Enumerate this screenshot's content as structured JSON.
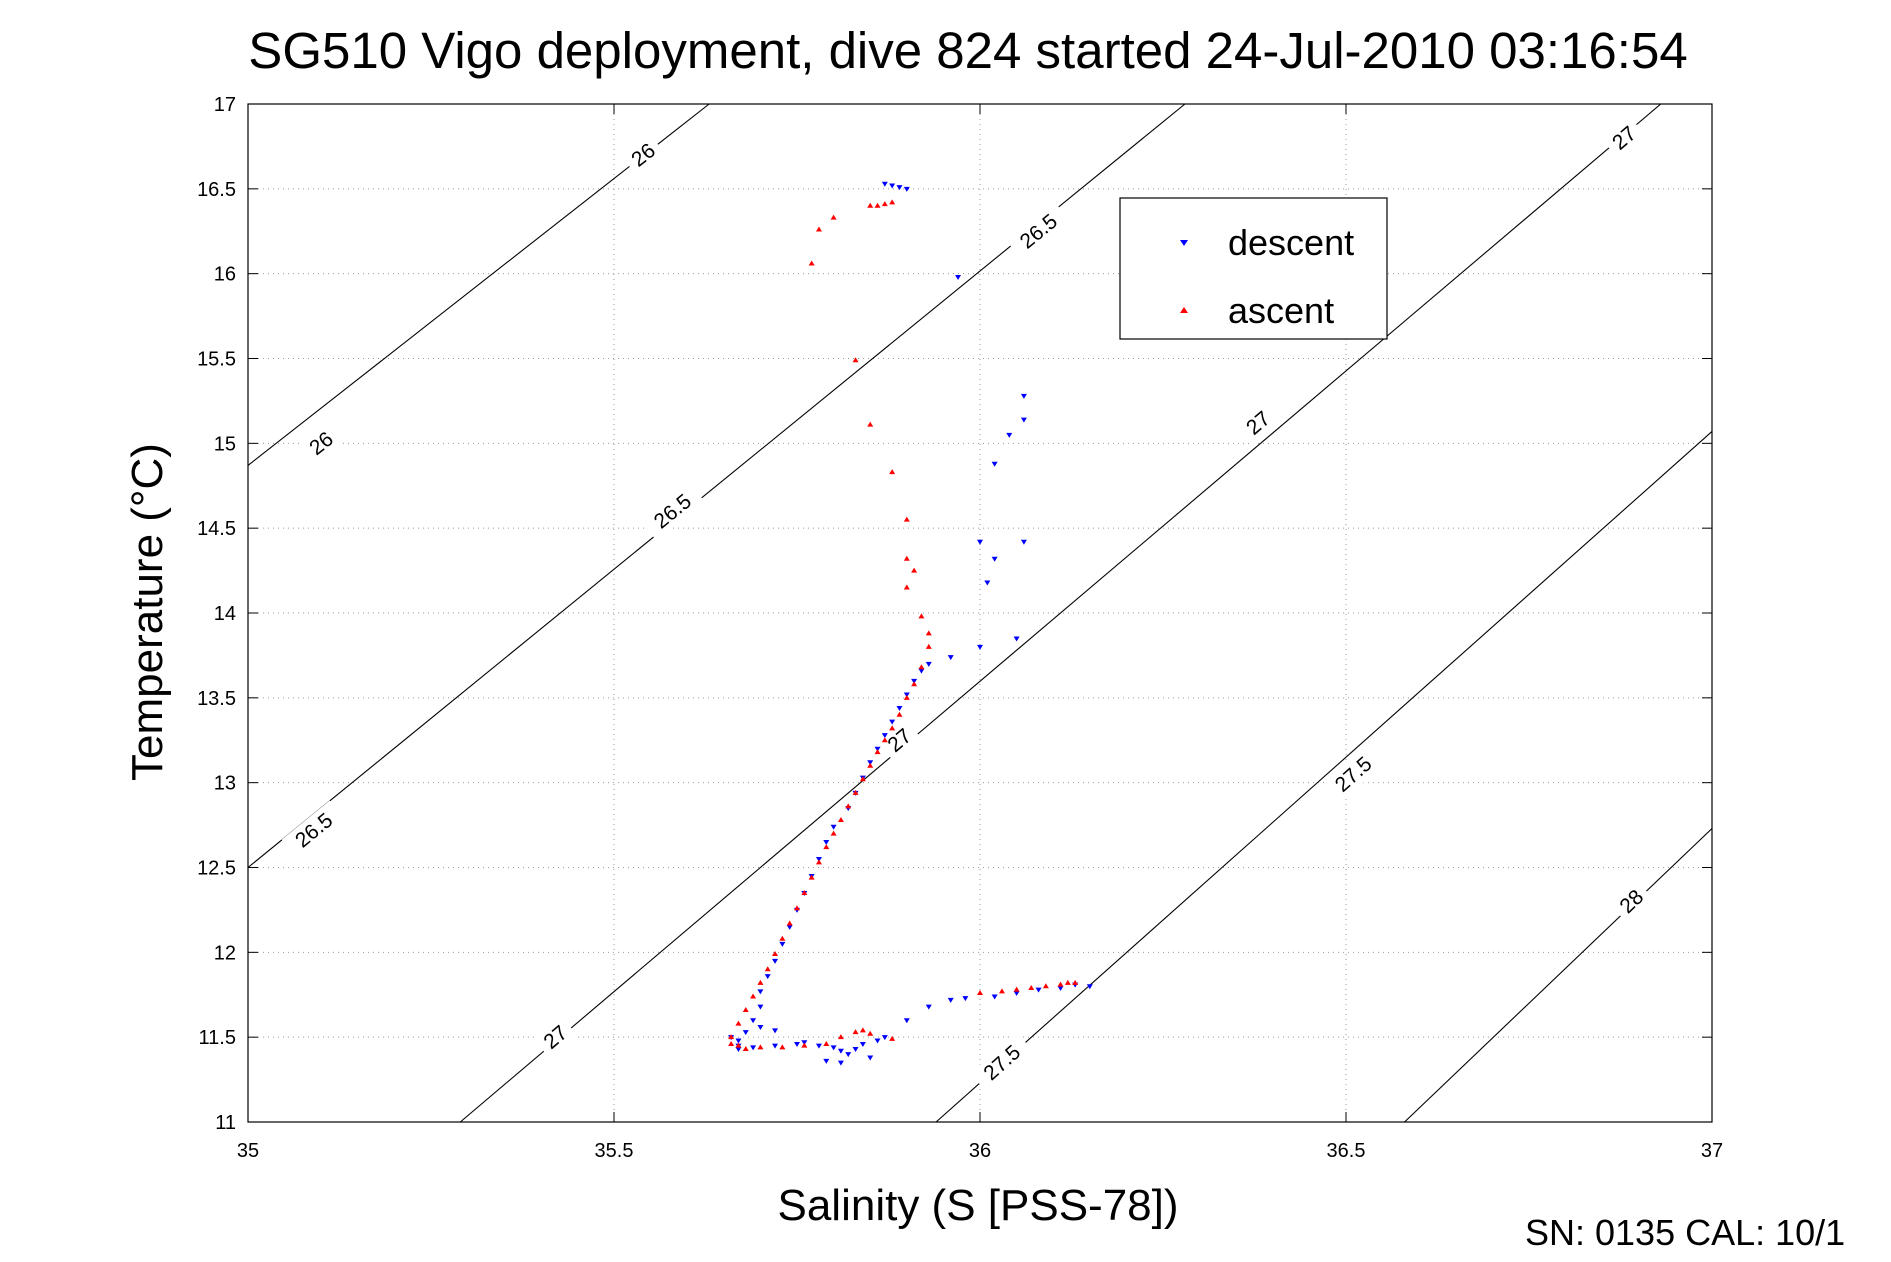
{
  "chart_data": {
    "type": "scatter",
    "title": "SG510 Vigo deployment, dive 824 started 24-Jul-2010 03:16:54",
    "xlabel": "Salinity (S [PSS-78])",
    "ylabel": "Temperature (°C)",
    "xlim": [
      35,
      37
    ],
    "ylim": [
      11,
      17
    ],
    "xticks": [
      35,
      35.5,
      36,
      36.5,
      37
    ],
    "xtick_labels": [
      "35",
      "35.5",
      "36",
      "36.5",
      "37"
    ],
    "yticks": [
      11,
      11.5,
      12,
      12.5,
      13,
      13.5,
      14,
      14.5,
      15,
      15.5,
      16,
      16.5,
      17
    ],
    "ytick_labels": [
      "11",
      "11.5",
      "12",
      "12.5",
      "13",
      "13.5",
      "14",
      "14.5",
      "15",
      "15.5",
      "16",
      "16.5",
      "17"
    ],
    "grid": true,
    "legend_position": "top-right",
    "footer": "SN: 0135  CAL: 10/1",
    "density_contours": [
      {
        "line": [
          [
            35.0,
            14.87
          ],
          [
            35.63,
            17.0
          ]
        ],
        "labels": [
          {
            "text": "26",
            "at": [
              35.1,
              15.0
            ]
          },
          {
            "text": "26",
            "at": [
              35.54,
              16.7
            ]
          }
        ]
      },
      {
        "line": [
          [
            35.0,
            12.5
          ],
          [
            36.28,
            17.0
          ]
        ],
        "labels": [
          {
            "text": "26.5",
            "at": [
              35.09,
              12.72
            ]
          },
          {
            "text": "26.5",
            "at": [
              35.58,
              14.6
            ]
          },
          {
            "text": "26.5",
            "at": [
              36.08,
              16.25
            ]
          }
        ]
      },
      {
        "line": [
          [
            35.29,
            11.0
          ],
          [
            36.93,
            17.0
          ]
        ],
        "labels": [
          {
            "text": "27",
            "at": [
              35.42,
              11.5
            ]
          },
          {
            "text": "27",
            "at": [
              35.89,
              13.25
            ]
          },
          {
            "text": "27",
            "at": [
              36.38,
              15.12
            ]
          },
          {
            "text": "27",
            "at": [
              36.88,
              16.8
            ]
          }
        ]
      },
      {
        "line": [
          [
            35.94,
            11.0
          ],
          [
            37.0,
            15.07
          ]
        ],
        "labels": [
          {
            "text": "27.5",
            "at": [
              36.03,
              11.35
            ]
          },
          {
            "text": "27.5",
            "at": [
              36.51,
              13.05
            ]
          }
        ]
      },
      {
        "line": [
          [
            36.58,
            11.0
          ],
          [
            37.0,
            12.73
          ]
        ],
        "labels": [
          {
            "text": "28",
            "at": [
              36.89,
              12.3
            ]
          }
        ]
      }
    ],
    "series": [
      {
        "name": "descent",
        "color": "#0000ff",
        "marker": "triangle-down",
        "x": [
          35.87,
          35.88,
          35.89,
          35.9,
          35.97,
          36.06,
          36.04,
          36.06,
          36.02,
          36.0,
          36.02,
          36.06,
          36.01,
          36.05,
          36.0,
          35.96,
          35.93,
          35.92,
          35.91,
          35.9,
          35.89,
          35.88,
          35.87,
          35.86,
          35.85,
          35.84,
          35.83,
          35.82,
          35.8,
          35.79,
          35.78,
          35.77,
          35.76,
          35.75,
          35.74,
          35.73,
          35.72,
          35.71,
          35.7,
          35.7,
          35.69,
          35.68,
          35.67,
          35.67,
          35.66,
          35.67,
          35.69,
          35.72,
          35.75,
          35.78,
          35.8,
          35.81,
          35.82,
          35.83,
          35.84,
          35.86,
          35.87,
          35.9,
          35.93,
          35.96,
          35.98,
          36.02,
          36.05,
          36.08,
          36.11,
          36.13,
          36.15,
          35.7,
          35.72,
          35.76,
          35.79,
          35.85,
          35.81
        ],
        "y": [
          16.53,
          16.52,
          16.51,
          16.5,
          15.98,
          15.28,
          15.05,
          15.14,
          14.88,
          14.42,
          14.32,
          14.42,
          14.18,
          13.85,
          13.8,
          13.74,
          13.7,
          13.66,
          13.6,
          13.52,
          13.44,
          13.36,
          13.28,
          13.2,
          13.12,
          13.03,
          12.94,
          12.85,
          12.74,
          12.65,
          12.55,
          12.45,
          12.35,
          12.25,
          12.15,
          12.05,
          11.95,
          11.86,
          11.77,
          11.68,
          11.6,
          11.53,
          11.48,
          11.45,
          11.5,
          11.43,
          11.44,
          11.45,
          11.46,
          11.45,
          11.44,
          11.42,
          11.4,
          11.43,
          11.46,
          11.48,
          11.5,
          11.6,
          11.68,
          11.72,
          11.73,
          11.74,
          11.76,
          11.78,
          11.79,
          11.81,
          11.8,
          11.56,
          11.54,
          11.47,
          11.36,
          11.38,
          11.35
        ]
      },
      {
        "name": "ascent",
        "color": "#ff0000",
        "marker": "triangle-up",
        "x": [
          35.88,
          35.87,
          35.86,
          35.85,
          35.8,
          35.78,
          35.77,
          35.83,
          35.85,
          35.88,
          35.9,
          35.9,
          35.91,
          35.9,
          35.92,
          35.93,
          35.93,
          35.92,
          35.91,
          35.9,
          35.89,
          35.88,
          35.87,
          35.86,
          35.85,
          35.84,
          35.83,
          35.82,
          35.81,
          35.8,
          35.79,
          35.78,
          35.77,
          35.76,
          35.75,
          35.74,
          35.73,
          35.72,
          35.71,
          35.7,
          35.69,
          35.68,
          35.67,
          35.66,
          35.66,
          35.67,
          35.68,
          35.7,
          35.73,
          35.76,
          35.79,
          35.81,
          35.83,
          35.84,
          35.85,
          35.88,
          36.0,
          36.03,
          36.05,
          36.07,
          36.09,
          36.11,
          36.12,
          36.13
        ],
        "y": [
          16.42,
          16.41,
          16.4,
          16.4,
          16.33,
          16.26,
          16.06,
          15.49,
          15.11,
          14.83,
          14.55,
          14.32,
          14.25,
          14.15,
          13.98,
          13.88,
          13.8,
          13.68,
          13.58,
          13.5,
          13.4,
          13.32,
          13.25,
          13.18,
          13.1,
          13.02,
          12.94,
          12.86,
          12.78,
          12.7,
          12.62,
          12.53,
          12.44,
          12.35,
          12.26,
          12.17,
          12.08,
          11.99,
          11.9,
          11.82,
          11.74,
          11.66,
          11.58,
          11.5,
          11.46,
          11.45,
          11.43,
          11.44,
          11.44,
          11.45,
          11.46,
          11.5,
          11.53,
          11.54,
          11.52,
          11.49,
          11.76,
          11.77,
          11.78,
          11.79,
          11.8,
          11.81,
          11.82,
          11.82
        ]
      }
    ]
  }
}
